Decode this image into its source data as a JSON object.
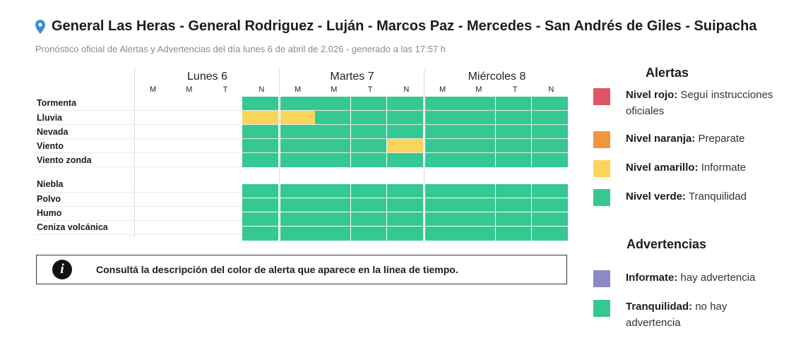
{
  "header": {
    "title": "General Las Heras - General Rodriguez - Luján - Marcos Paz - Mercedes - San Andrés de Giles - Suipacha",
    "subtitle": "Pronóstico oficial de Alertas y Advertencias del día lunes 6 de abril de 2.026 - generado a las 17:57 h"
  },
  "colors": {
    "rojo": "#de5563",
    "naranja": "#f2963e",
    "amarillo": "#fbd55b",
    "verde": "#35c892",
    "violeta": "#8e87c8",
    "vacio": "#ffffff"
  },
  "days": [
    {
      "name": "Lunes 6",
      "slots": [
        "M",
        "M",
        "T",
        "N"
      ]
    },
    {
      "name": "Martes 7",
      "slots": [
        "M",
        "M",
        "T",
        "N"
      ]
    },
    {
      "name": "Miércoles 8",
      "slots": [
        "M",
        "M",
        "T",
        "N"
      ]
    }
  ],
  "rows": [
    {
      "label": "Tormenta",
      "cells": [
        "",
        "",
        "",
        "verde",
        "verde",
        "verde",
        "verde",
        "verde",
        "verde",
        "verde",
        "verde",
        "verde"
      ]
    },
    {
      "label": "Lluvia",
      "cells": [
        "",
        "",
        "",
        "amarillo",
        "amarillo",
        "verde",
        "verde",
        "verde",
        "verde",
        "verde",
        "verde",
        "verde"
      ]
    },
    {
      "label": "Nevada",
      "cells": [
        "",
        "",
        "",
        "verde",
        "verde",
        "verde",
        "verde",
        "verde",
        "verde",
        "verde",
        "verde",
        "verde"
      ]
    },
    {
      "label": "Viento",
      "cells": [
        "",
        "",
        "",
        "verde",
        "verde",
        "verde",
        "verde",
        "amarillo",
        "verde",
        "verde",
        "verde",
        "verde"
      ]
    },
    {
      "label": "Viento zonda",
      "cells": [
        "",
        "",
        "",
        "verde",
        "verde",
        "verde",
        "verde",
        "verde",
        "verde",
        "verde",
        "verde",
        "verde"
      ]
    },
    {
      "label": "Niebla",
      "cells": [
        "",
        "",
        "",
        "verde",
        "verde",
        "verde",
        "verde",
        "verde",
        "verde",
        "verde",
        "verde",
        "verde"
      ]
    },
    {
      "label": "Polvo",
      "cells": [
        "",
        "",
        "",
        "verde",
        "verde",
        "verde",
        "verde",
        "verde",
        "verde",
        "verde",
        "verde",
        "verde"
      ]
    },
    {
      "label": "Humo",
      "cells": [
        "",
        "",
        "",
        "verde",
        "verde",
        "verde",
        "verde",
        "verde",
        "verde",
        "verde",
        "verde",
        "verde"
      ]
    },
    {
      "label": "Ceniza volcánica",
      "cells": [
        "",
        "",
        "",
        "verde",
        "verde",
        "verde",
        "verde",
        "verde",
        "verde",
        "verde",
        "verde",
        "verde"
      ]
    }
  ],
  "info": {
    "icon": "info-icon",
    "icon_glyph": "i",
    "text": "Consultá la descripción del color de alerta que aparece en la línea de tiempo."
  },
  "legend": {
    "alertas_title": "Alertas",
    "alertas": [
      {
        "level": "rojo",
        "strong": "Nivel rojo:",
        "text": " Seguí instrucciones oficiales"
      },
      {
        "level": "naranja",
        "strong": "Nivel naranja:",
        "text": " Preparate"
      },
      {
        "level": "amarillo",
        "strong": "Nivel amarillo:",
        "text": " Informate"
      },
      {
        "level": "verde",
        "strong": "Nivel verde:",
        "text": " Tranquilidad"
      }
    ],
    "advertencias_title": "Advertencias",
    "advertencias": [
      {
        "level": "violeta",
        "strong": "Informate:",
        "text": " hay advertencia"
      },
      {
        "level": "verde",
        "strong": "Tranquilidad:",
        "text": " no hay advertencia"
      }
    ]
  }
}
